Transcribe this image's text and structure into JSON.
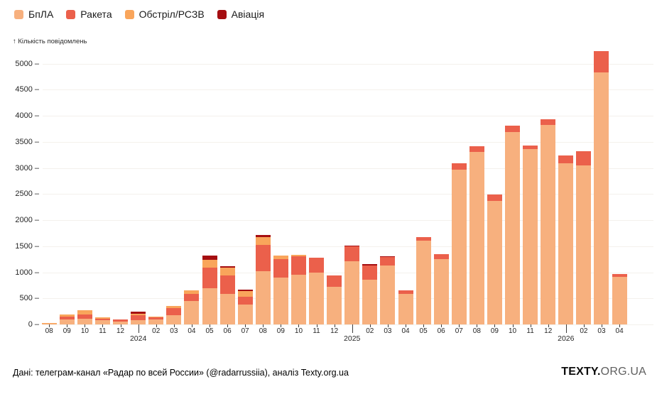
{
  "legend": {
    "items": [
      {
        "label": "БпЛА",
        "color": "#F7B07E"
      },
      {
        "label": "Ракета",
        "color": "#EB604B"
      },
      {
        "label": "Обстріл/РСЗВ",
        "color": "#F9A55B"
      },
      {
        "label": "Авіація",
        "color": "#A50E11"
      }
    ]
  },
  "axis": {
    "y_label": "↑ Кількість повідомлень",
    "tick_suffix": "–"
  },
  "chart_data": {
    "type": "bar",
    "stacked": true,
    "title": "",
    "ylabel": "Кількість повідомлень",
    "xlabel": "",
    "ylim": [
      0,
      5000
    ],
    "ytick_step": 500,
    "grid": true,
    "legend_position": "top-left",
    "categories": [
      "2023-08",
      "2023-09",
      "2023-10",
      "2023-11",
      "2023-12",
      "2024-01",
      "2024-02",
      "2024-03",
      "2024-04",
      "2024-05",
      "2024-06",
      "2024-07",
      "2024-08",
      "2024-09",
      "2024-10",
      "2024-11",
      "2024-12",
      "2025-01",
      "2025-02",
      "2025-03",
      "2025-04",
      "2025-05",
      "2025-06",
      "2025-07",
      "2025-08",
      "2025-09",
      "2025-10",
      "2025-11",
      "2025-12",
      "2026-01",
      "2026-02",
      "2026-03",
      "2026-04"
    ],
    "x_tick_labels": [
      "08",
      "09",
      "10",
      "11",
      "12",
      "2024",
      "02",
      "03",
      "04",
      "05",
      "06",
      "07",
      "08",
      "09",
      "10",
      "11",
      "12",
      "2025",
      "02",
      "03",
      "04",
      "05",
      "06",
      "07",
      "08",
      "09",
      "10",
      "11",
      "12",
      "2026",
      "02",
      "03",
      "04"
    ],
    "year_tick_indices": [
      5,
      17,
      29
    ],
    "series": [
      {
        "name": "БпЛА",
        "color": "#F7B07E",
        "values": [
          25,
          100,
          115,
          85,
          55,
          85,
          90,
          180,
          450,
          700,
          580,
          375,
          1020,
          895,
          950,
          1000,
          715,
          1210,
          860,
          1135,
          580,
          1610,
          1250,
          2970,
          3310,
          2370,
          3685,
          3355,
          3830,
          3095,
          3050,
          4830,
          915
        ]
      },
      {
        "name": "Ракета",
        "color": "#EB604B",
        "values": [
          0,
          45,
          75,
          30,
          35,
          90,
          45,
          130,
          140,
          385,
          360,
          155,
          500,
          360,
          350,
          280,
          225,
          290,
          265,
          155,
          70,
          70,
          100,
          120,
          105,
          115,
          125,
          80,
          105,
          150,
          265,
          410,
          45
        ]
      },
      {
        "name": "Обстріл/РСЗВ",
        "color": "#F9A55B",
        "values": [
          8,
          45,
          80,
          20,
          0,
          30,
          10,
          50,
          70,
          160,
          150,
          115,
          160,
          60,
          35,
          0,
          0,
          0,
          0,
          0,
          0,
          0,
          0,
          0,
          0,
          0,
          0,
          0,
          0,
          0,
          0,
          0,
          0
        ]
      },
      {
        "name": "Авіація",
        "color": "#A50E11",
        "values": [
          0,
          0,
          0,
          0,
          0,
          45,
          0,
          0,
          0,
          80,
          30,
          20,
          35,
          0,
          0,
          0,
          0,
          15,
          30,
          15,
          0,
          0,
          0,
          0,
          0,
          0,
          0,
          0,
          0,
          0,
          0,
          0,
          0
        ]
      }
    ]
  },
  "footer": {
    "attribution": "Дані: телеграм-канал «Радар по всей России» (@radarrussiia), аналіз Texty.org.ua",
    "logo_bold": "TEXTY.",
    "logo_rest": "ORG.UA"
  }
}
